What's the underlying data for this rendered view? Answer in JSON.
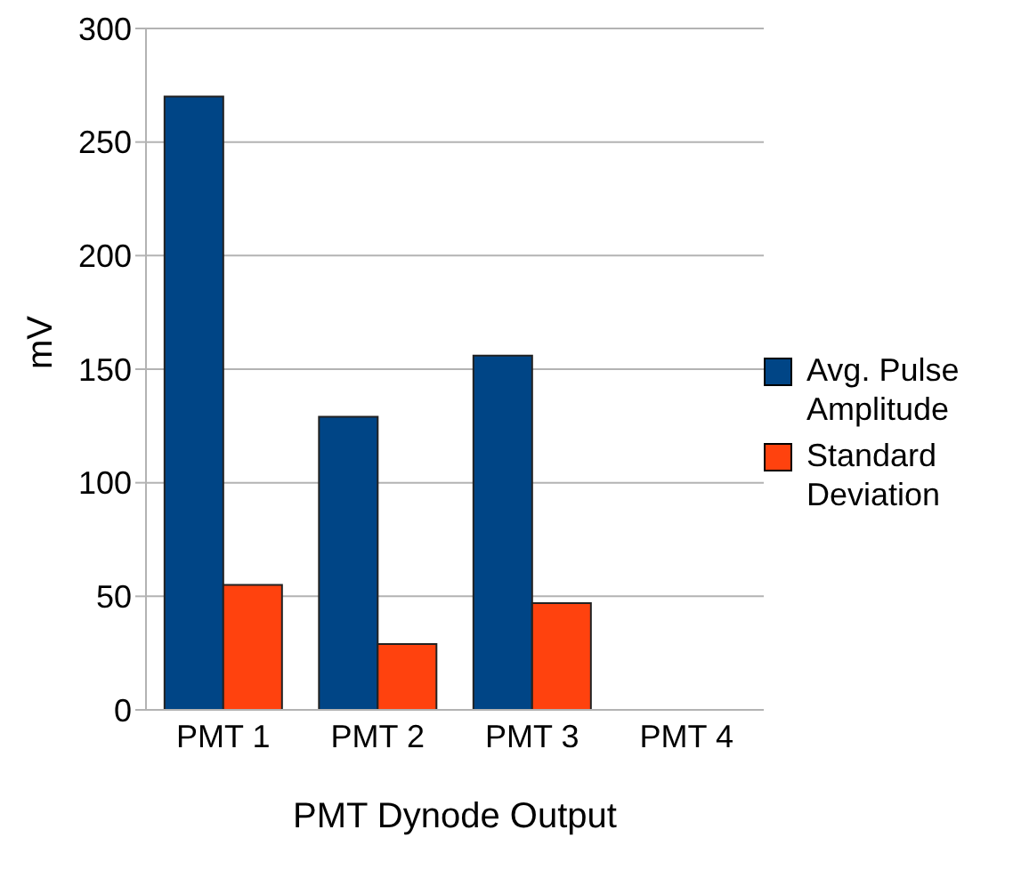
{
  "chart_data": {
    "type": "bar",
    "xlabel": "PMT Dynode Output",
    "ylabel": "mV",
    "categories": [
      "PMT 1",
      "PMT 2",
      "PMT 3",
      "PMT 4"
    ],
    "series": [
      {
        "name": "Avg. Pulse Amplitude",
        "color": "#004586",
        "values": [
          270,
          129,
          156,
          null
        ]
      },
      {
        "name": "Standard Deviation",
        "color": "#ff420e",
        "values": [
          55,
          29,
          47,
          null
        ]
      }
    ],
    "ylim": [
      0,
      300
    ],
    "yticks": [
      0,
      50,
      100,
      150,
      200,
      250,
      300
    ],
    "grid": "y",
    "legend": "right"
  }
}
